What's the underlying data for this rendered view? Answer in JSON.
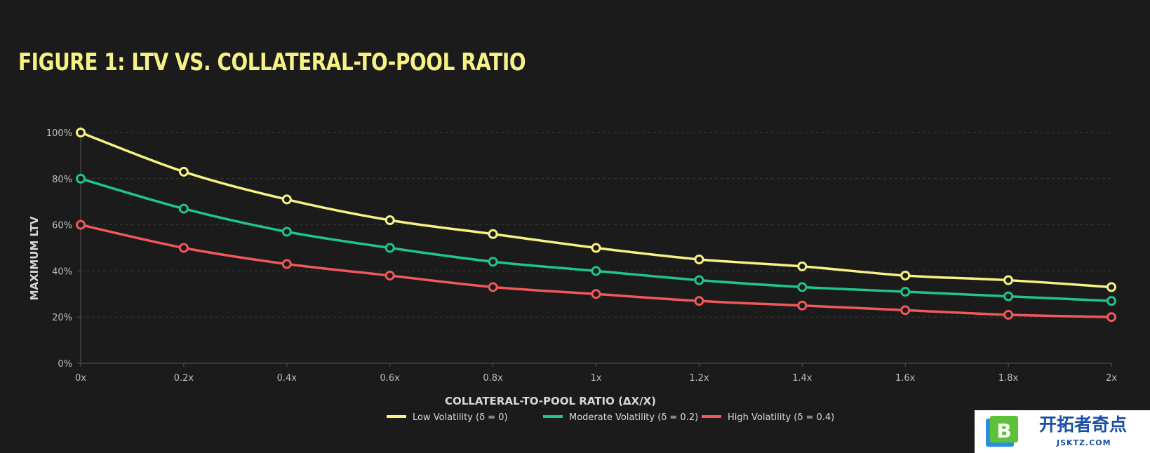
{
  "title": "FIGURE 1: LTV VS. COLLATERAL-TO-POOL RATIO",
  "colors": {
    "background": "#1b1b1b",
    "title": "#f7f283",
    "grid": "#3a3a3a",
    "axis": "#555555"
  },
  "chart_data": {
    "type": "line",
    "title": "FIGURE 1: LTV VS. COLLATERAL-TO-POOL RATIO",
    "xlabel": "COLLATERAL-TO-POOL RATIO (ΔX/X)",
    "ylabel": "MAXIMUM LTV",
    "x": [
      0,
      0.2,
      0.4,
      0.6,
      0.8,
      1.0,
      1.2,
      1.4,
      1.6,
      1.8,
      2.0
    ],
    "x_tick_labels": [
      "0x",
      "0.2x",
      "0.4x",
      "0.6x",
      "0.8x",
      "1x",
      "1.2x",
      "1.4x",
      "1.6x",
      "1.8x",
      "2x"
    ],
    "y_ticks": [
      0,
      20,
      40,
      60,
      80,
      100
    ],
    "y_tick_labels": [
      "0%",
      "20%",
      "40%",
      "60%",
      "80%",
      "100%"
    ],
    "xlim": [
      0,
      2
    ],
    "ylim": [
      0,
      100
    ],
    "grid": "horizontal dashed",
    "legend_position": "bottom-center",
    "series": [
      {
        "name": "Low Volatility (δ = 0)",
        "color": "#f7f283",
        "values": [
          100,
          83,
          71,
          62,
          56,
          50,
          45,
          42,
          38,
          36,
          33
        ]
      },
      {
        "name": "Moderate Volatility (δ = 0.2)",
        "color": "#1fc48e",
        "values": [
          80,
          67,
          57,
          50,
          44,
          40,
          36,
          33,
          31,
          29,
          27
        ]
      },
      {
        "name": "High Volatility (δ = 0.4)",
        "color": "#f0585a",
        "values": [
          60,
          50,
          43,
          38,
          33,
          30,
          27,
          25,
          23,
          21,
          20
        ]
      }
    ]
  },
  "watermark": {
    "logo_letter": "B",
    "text": "开拓者奇点",
    "subtext": "JSKTZ.COM"
  }
}
